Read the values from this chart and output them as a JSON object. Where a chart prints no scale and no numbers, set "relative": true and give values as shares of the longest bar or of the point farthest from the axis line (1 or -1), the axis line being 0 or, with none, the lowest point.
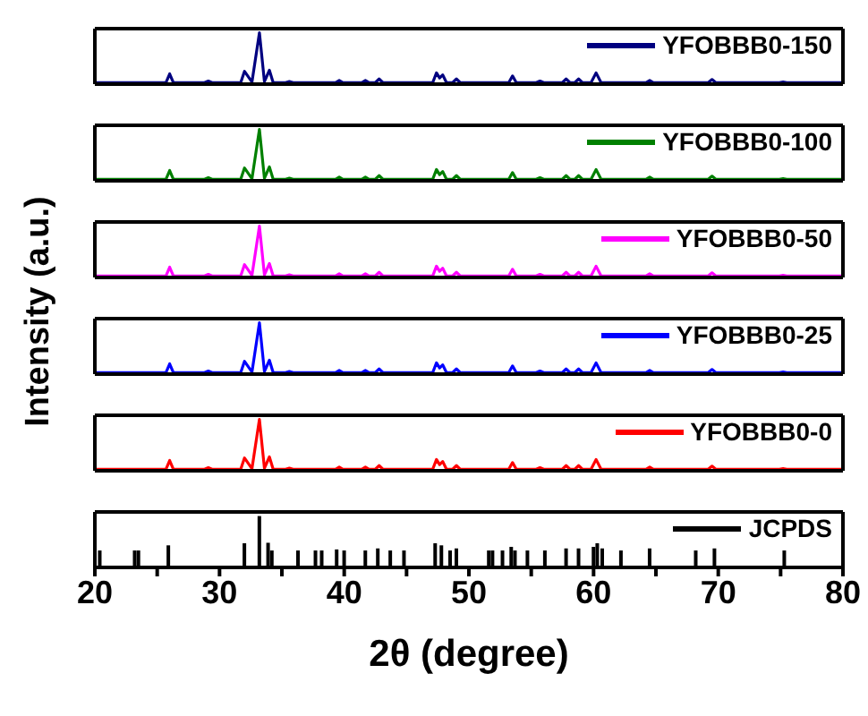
{
  "chart_data": [
    {
      "type": "line",
      "relative": true,
      "legend": "top right",
      "tick_labels": false,
      "xlim": [
        20,
        80
      ],
      "xticks": [
        20,
        30,
        40,
        50,
        60,
        70,
        80
      ],
      "x": [
        20,
        25.7,
        26.0,
        26.3,
        28.8,
        29.1,
        29.4,
        31.7,
        32.0,
        32.6,
        33.2,
        33.6,
        34.0,
        34.3,
        35.3,
        35.6,
        35.9,
        39.3,
        39.6,
        39.9,
        41.4,
        41.7,
        42.0,
        42.5,
        42.8,
        43.1,
        47.1,
        47.4,
        47.65,
        47.9,
        48.2,
        48.7,
        49.0,
        49.3,
        53.2,
        53.5,
        53.8,
        55.4,
        55.7,
        56.0,
        57.5,
        57.8,
        58.1,
        58.5,
        58.8,
        59.1,
        59.8,
        60.2,
        60.6,
        64.2,
        64.5,
        64.8,
        69.2,
        69.5,
        69.8,
        74.9,
        75.2,
        75.5,
        80
      ],
      "series": [
        {
          "name": "YFOBBB0-150",
          "color": "#000080",
          "values": [
            0.03,
            0.03,
            0.2,
            0.03,
            0.03,
            0.06,
            0.03,
            0.03,
            0.25,
            0.04,
            1,
            0.05,
            0.27,
            0.03,
            0.03,
            0.05,
            0.03,
            0.03,
            0.07,
            0.03,
            0.03,
            0.07,
            0.03,
            0.03,
            0.1,
            0.03,
            0.03,
            0.22,
            0.12,
            0.18,
            0.03,
            0.03,
            0.1,
            0.03,
            0.03,
            0.16,
            0.03,
            0.03,
            0.06,
            0.03,
            0.03,
            0.1,
            0.03,
            0.03,
            0.1,
            0.03,
            0.03,
            0.22,
            0.03,
            0.03,
            0.07,
            0.03,
            0.03,
            0.09,
            0.03,
            0.03,
            0.04,
            0.03,
            0.03
          ]
        }
      ]
    },
    {
      "type": "line",
      "relative": true,
      "legend": "top right",
      "tick_labels": false,
      "xlim": [
        20,
        80
      ],
      "xticks": [
        20,
        30,
        40,
        50,
        60,
        70,
        80
      ],
      "x": [
        20,
        25.7,
        26.0,
        26.3,
        28.8,
        29.1,
        29.4,
        31.7,
        32.0,
        32.6,
        33.2,
        33.6,
        34.0,
        34.3,
        35.3,
        35.6,
        35.9,
        39.3,
        39.6,
        39.9,
        41.4,
        41.7,
        42.0,
        42.5,
        42.8,
        43.1,
        47.1,
        47.4,
        47.65,
        47.9,
        48.2,
        48.7,
        49.0,
        49.3,
        53.2,
        53.5,
        53.8,
        55.4,
        55.7,
        56.0,
        57.5,
        57.8,
        58.1,
        58.5,
        58.8,
        59.1,
        59.8,
        60.2,
        60.6,
        64.2,
        64.5,
        64.8,
        69.2,
        69.5,
        69.8,
        74.9,
        75.2,
        75.5,
        80
      ],
      "series": [
        {
          "name": "YFOBBB0-100",
          "color": "#008000",
          "values": [
            0.03,
            0.03,
            0.2,
            0.03,
            0.03,
            0.06,
            0.03,
            0.03,
            0.25,
            0.04,
            1,
            0.05,
            0.27,
            0.03,
            0.03,
            0.05,
            0.03,
            0.03,
            0.07,
            0.03,
            0.03,
            0.07,
            0.03,
            0.03,
            0.1,
            0.03,
            0.03,
            0.22,
            0.12,
            0.18,
            0.03,
            0.03,
            0.1,
            0.03,
            0.03,
            0.16,
            0.03,
            0.03,
            0.06,
            0.03,
            0.03,
            0.1,
            0.03,
            0.03,
            0.1,
            0.03,
            0.03,
            0.22,
            0.03,
            0.03,
            0.07,
            0.03,
            0.03,
            0.09,
            0.03,
            0.03,
            0.04,
            0.03,
            0.03
          ]
        }
      ]
    },
    {
      "type": "line",
      "relative": true,
      "legend": "top right",
      "tick_labels": false,
      "ylabel": "Intensity (a.u.)",
      "xlim": [
        20,
        80
      ],
      "xticks": [
        20,
        30,
        40,
        50,
        60,
        70,
        80
      ],
      "x": [
        20,
        25.7,
        26.0,
        26.3,
        28.8,
        29.1,
        29.4,
        31.7,
        32.0,
        32.6,
        33.2,
        33.6,
        34.0,
        34.3,
        35.3,
        35.6,
        35.9,
        39.3,
        39.6,
        39.9,
        41.4,
        41.7,
        42.0,
        42.5,
        42.8,
        43.1,
        47.1,
        47.4,
        47.65,
        47.9,
        48.2,
        48.7,
        49.0,
        49.3,
        53.2,
        53.5,
        53.8,
        55.4,
        55.7,
        56.0,
        57.5,
        57.8,
        58.1,
        58.5,
        58.8,
        59.1,
        59.8,
        60.2,
        60.6,
        64.2,
        64.5,
        64.8,
        69.2,
        69.5,
        69.8,
        74.9,
        75.2,
        75.5,
        80
      ],
      "series": [
        {
          "name": "YFOBBB0-50",
          "color": "#ff00ff",
          "values": [
            0.03,
            0.03,
            0.2,
            0.03,
            0.03,
            0.06,
            0.03,
            0.03,
            0.25,
            0.04,
            1,
            0.05,
            0.27,
            0.03,
            0.03,
            0.05,
            0.03,
            0.03,
            0.07,
            0.03,
            0.03,
            0.07,
            0.03,
            0.03,
            0.1,
            0.03,
            0.03,
            0.22,
            0.12,
            0.18,
            0.03,
            0.03,
            0.1,
            0.03,
            0.03,
            0.16,
            0.03,
            0.03,
            0.06,
            0.03,
            0.03,
            0.1,
            0.03,
            0.03,
            0.1,
            0.03,
            0.03,
            0.22,
            0.03,
            0.03,
            0.07,
            0.03,
            0.03,
            0.09,
            0.03,
            0.03,
            0.04,
            0.03,
            0.03
          ]
        }
      ]
    },
    {
      "type": "line",
      "relative": true,
      "legend": "top right",
      "tick_labels": false,
      "xlim": [
        20,
        80
      ],
      "xticks": [
        20,
        30,
        40,
        50,
        60,
        70,
        80
      ],
      "x": [
        20,
        25.7,
        26.0,
        26.3,
        28.8,
        29.1,
        29.4,
        31.7,
        32.0,
        32.6,
        33.2,
        33.6,
        34.0,
        34.3,
        35.3,
        35.6,
        35.9,
        39.3,
        39.6,
        39.9,
        41.4,
        41.7,
        42.0,
        42.5,
        42.8,
        43.1,
        47.1,
        47.4,
        47.65,
        47.9,
        48.2,
        48.7,
        49.0,
        49.3,
        53.2,
        53.5,
        53.8,
        55.4,
        55.7,
        56.0,
        57.5,
        57.8,
        58.1,
        58.5,
        58.8,
        59.1,
        59.8,
        60.2,
        60.6,
        64.2,
        64.5,
        64.8,
        69.2,
        69.5,
        69.8,
        74.9,
        75.2,
        75.5,
        80
      ],
      "series": [
        {
          "name": "YFOBBB0-25",
          "color": "#0000ff",
          "values": [
            0.03,
            0.03,
            0.2,
            0.03,
            0.03,
            0.06,
            0.03,
            0.03,
            0.25,
            0.04,
            1,
            0.05,
            0.27,
            0.03,
            0.03,
            0.05,
            0.03,
            0.03,
            0.07,
            0.03,
            0.03,
            0.07,
            0.03,
            0.03,
            0.1,
            0.03,
            0.03,
            0.22,
            0.12,
            0.18,
            0.03,
            0.03,
            0.1,
            0.03,
            0.03,
            0.16,
            0.03,
            0.03,
            0.06,
            0.03,
            0.03,
            0.1,
            0.03,
            0.03,
            0.1,
            0.03,
            0.03,
            0.22,
            0.03,
            0.03,
            0.07,
            0.03,
            0.03,
            0.09,
            0.03,
            0.03,
            0.04,
            0.03,
            0.03
          ]
        }
      ]
    },
    {
      "type": "line",
      "relative": true,
      "legend": "top right",
      "tick_labels": false,
      "xlim": [
        20,
        80
      ],
      "xticks": [
        20,
        30,
        40,
        50,
        60,
        70,
        80
      ],
      "x": [
        20,
        25.7,
        26.0,
        26.3,
        28.8,
        29.1,
        29.4,
        31.7,
        32.0,
        32.6,
        33.2,
        33.6,
        34.0,
        34.3,
        35.3,
        35.6,
        35.9,
        39.3,
        39.6,
        39.9,
        41.4,
        41.7,
        42.0,
        42.5,
        42.8,
        43.1,
        47.1,
        47.4,
        47.65,
        47.9,
        48.2,
        48.7,
        49.0,
        49.3,
        53.2,
        53.5,
        53.8,
        55.4,
        55.7,
        56.0,
        57.5,
        57.8,
        58.1,
        58.5,
        58.8,
        59.1,
        59.8,
        60.2,
        60.6,
        64.2,
        64.5,
        64.8,
        69.2,
        69.5,
        69.8,
        74.9,
        75.2,
        75.5,
        80
      ],
      "series": [
        {
          "name": "YFOBBB0-0",
          "color": "#ff0000",
          "values": [
            0.03,
            0.03,
            0.2,
            0.03,
            0.03,
            0.06,
            0.03,
            0.03,
            0.25,
            0.04,
            1,
            0.05,
            0.27,
            0.03,
            0.03,
            0.05,
            0.03,
            0.03,
            0.07,
            0.03,
            0.03,
            0.07,
            0.03,
            0.03,
            0.1,
            0.03,
            0.03,
            0.22,
            0.12,
            0.18,
            0.03,
            0.03,
            0.1,
            0.03,
            0.03,
            0.16,
            0.03,
            0.03,
            0.06,
            0.03,
            0.03,
            0.1,
            0.03,
            0.03,
            0.1,
            0.03,
            0.03,
            0.22,
            0.03,
            0.03,
            0.07,
            0.03,
            0.03,
            0.09,
            0.03,
            0.03,
            0.04,
            0.03,
            0.03
          ]
        }
      ]
    },
    {
      "type": "bar",
      "relative": true,
      "legend": "top right",
      "tick_labels": "x",
      "xlabel": "2θ (degree)",
      "xlim": [
        20,
        80
      ],
      "xticks": [
        20,
        {
          "value": 25,
          "label": null
        },
        30,
        {
          "value": 35,
          "label": null
        },
        40,
        {
          "value": 45,
          "label": null
        },
        50,
        {
          "value": 55,
          "label": null
        },
        60,
        {
          "value": 65,
          "label": null
        },
        70,
        {
          "value": 75,
          "label": null
        },
        80
      ],
      "x": [
        20.4,
        23.2,
        23.5,
        25.9,
        32.0,
        33.2,
        33.9,
        34.2,
        36.3,
        37.7,
        38.2,
        39.4,
        40.0,
        41.7,
        42.7,
        43.7,
        44.8,
        47.3,
        47.8,
        48.5,
        49.0,
        51.6,
        51.9,
        52.7,
        53.4,
        53.7,
        54.7,
        56.1,
        57.8,
        58.8,
        60.0,
        60.3,
        60.7,
        62.2,
        64.5,
        68.2,
        69.7,
        75.3
      ],
      "series": [
        {
          "name": "JCPDS",
          "color": "#000000",
          "values": [
            0.33,
            0.33,
            0.33,
            0.43,
            0.47,
            1,
            0.48,
            0.33,
            0.33,
            0.33,
            0.33,
            0.35,
            0.33,
            0.33,
            0.37,
            0.33,
            0.33,
            0.47,
            0.43,
            0.33,
            0.37,
            0.33,
            0.33,
            0.33,
            0.4,
            0.33,
            0.33,
            0.33,
            0.37,
            0.37,
            0.4,
            0.47,
            0.37,
            0.33,
            0.37,
            0.33,
            0.37,
            0.33
          ]
        }
      ]
    }
  ]
}
